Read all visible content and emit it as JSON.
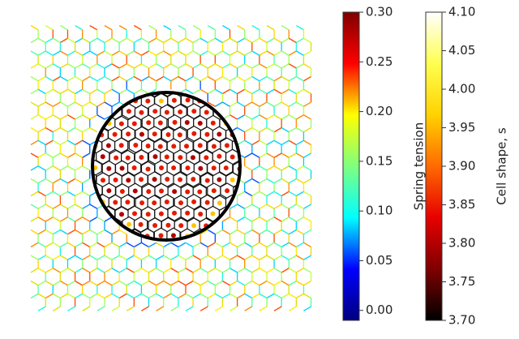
{
  "chart_data": [
    {
      "type": "colorbar",
      "label": "Spring tension",
      "colors": [
        "#00007f",
        "#0000ff",
        "#00ffff",
        "#7fff7f",
        "#ffff00",
        "#ff0000",
        "#7f0000"
      ],
      "ylim": [
        -0.01,
        0.3
      ],
      "yticks": [
        {
          "value": 0,
          "label": "0.00"
        },
        0.05,
        {
          "value": 0.1,
          "label": "0.10"
        },
        0.15,
        {
          "value": 0.2,
          "label": "0.20"
        },
        0.25,
        {
          "value": 0.3,
          "label": "0.30"
        }
      ]
    },
    {
      "type": "colorbar",
      "label": "Cell shape, s",
      "colors": [
        "#000000",
        "#7f0000",
        "#e60000",
        "#ff6a00",
        "#ffd200",
        "#ffff50",
        "#ffffff"
      ],
      "ylim": [
        3.7,
        4.1
      ],
      "yticks": [
        {
          "value": 3.7,
          "label": "3.70"
        },
        3.75,
        {
          "value": 3.8,
          "label": "3.80"
        },
        3.85,
        {
          "value": 3.9,
          "label": "3.90"
        },
        3.95,
        {
          "value": 4.0,
          "label": "4.00"
        },
        4.05,
        {
          "value": 4.1,
          "label": "4.10"
        }
      ]
    }
  ]
}
